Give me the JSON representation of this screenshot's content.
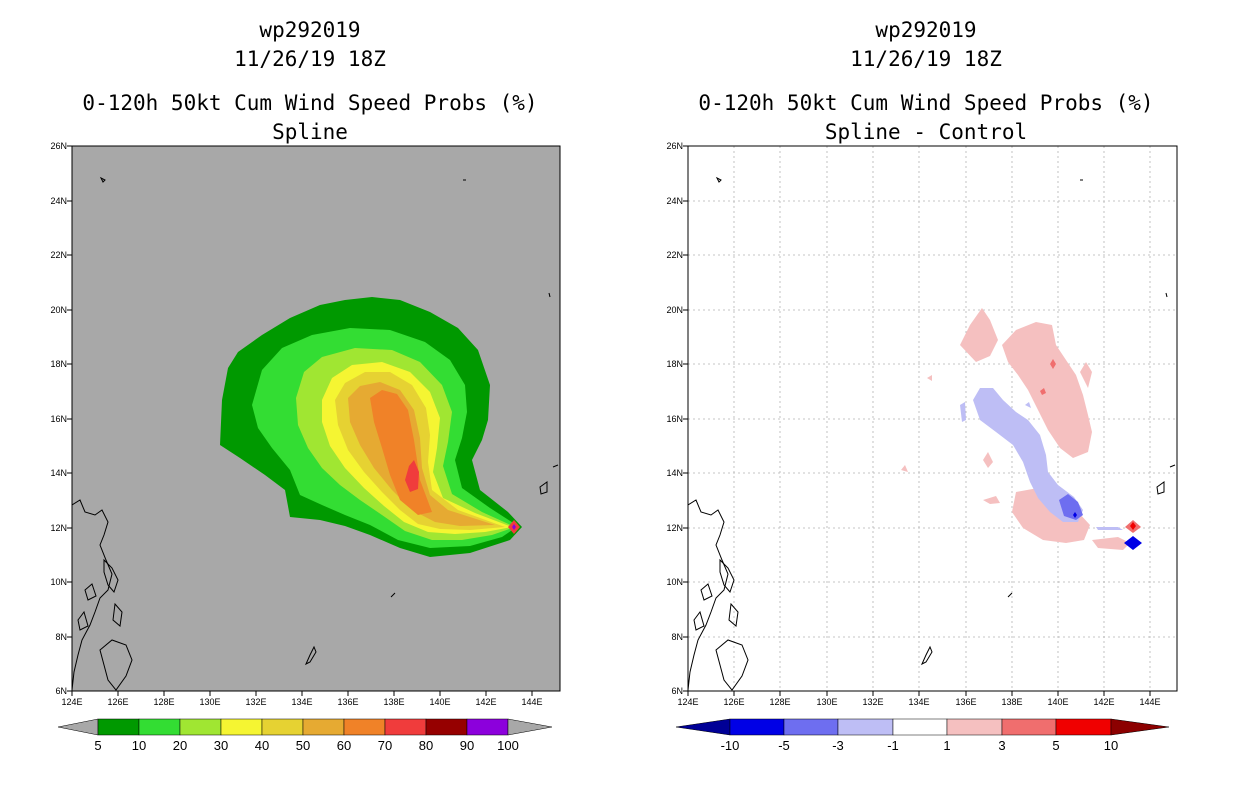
{
  "left": {
    "storm_id": "wp292019",
    "datetime": "11/26/19 18Z",
    "title": "0-120h 50kt Cum Wind Speed Probs (%)",
    "subtitle": "Spline",
    "lat_labels": [
      "26N",
      "24N",
      "22N",
      "20N",
      "18N",
      "16N",
      "14N",
      "12N",
      "10N",
      "8N",
      "6N"
    ],
    "lon_labels": [
      "124E",
      "126E",
      "128E",
      "130E",
      "132E",
      "134E",
      "136E",
      "138E",
      "140E",
      "142E",
      "144E"
    ],
    "colorbar": {
      "labels": [
        "5",
        "10",
        "20",
        "30",
        "40",
        "50",
        "60",
        "70",
        "80",
        "90",
        "100"
      ],
      "colors": [
        "#009900",
        "#33dd33",
        "#a0e632",
        "#f5f532",
        "#e6d232",
        "#e6aa32",
        "#f08228",
        "#f03c3c",
        "#960000",
        "#8c00dc"
      ]
    }
  },
  "right": {
    "storm_id": "wp292019",
    "datetime": "11/26/19 18Z",
    "title": "0-120h 50kt Cum Wind Speed Probs (%)",
    "subtitle": "Spline - Control",
    "lat_labels": [
      "26N",
      "24N",
      "22N",
      "20N",
      "18N",
      "16N",
      "14N",
      "12N",
      "10N",
      "8N",
      "6N"
    ],
    "lon_labels": [
      "124E",
      "126E",
      "128E",
      "130E",
      "132E",
      "134E",
      "136E",
      "138E",
      "140E",
      "142E",
      "144E"
    ],
    "colorbar": {
      "labels": [
        "-10",
        "-5",
        "-3",
        "-1",
        "1",
        "3",
        "5",
        "10"
      ],
      "colors": [
        "#0000e6",
        "#6e6ef0",
        "#bebef5",
        "#ffffff",
        "#f5c0c0",
        "#f06e6e",
        "#f00000"
      ]
    }
  }
}
